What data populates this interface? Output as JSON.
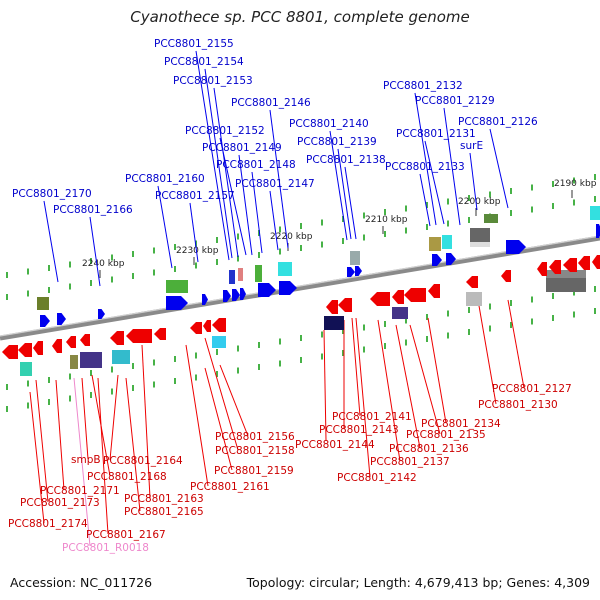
{
  "title": "Cyanothece sp. PCC 8801, complete genome",
  "footer": {
    "accession": "Accession: NC_011726",
    "stats": "Topology: circular; Length: 4,679,413 bp; Genes: 4,309"
  },
  "colors": {
    "forward_gene": "#0000ee",
    "reverse_gene": "#ee0000",
    "forward_label": "#0000cc",
    "reverse_label": "#cc0000",
    "rna_label": "#ee88cc",
    "backbone": "#888888"
  },
  "kbp_ticks": [
    "2190 kbp",
    "2200 kbp",
    "2210 kbp",
    "2220 kbp",
    "2230 kbp",
    "2240 kbp"
  ],
  "forward_labels": [
    "PCC8801_2155",
    "PCC8801_2154",
    "PCC8801_2153",
    "PCC8801_2146",
    "PCC8801_2152",
    "PCC8801_2149",
    "PCC8801_2148",
    "PCC8801_2147",
    "PCC8801_2160",
    "PCC8801_2157",
    "PCC8801_2170",
    "PCC8801_2166",
    "PCC8801_2140",
    "PCC8801_2139",
    "PCC8801_2138",
    "PCC8801_2132",
    "PCC8801_2129",
    "PCC8801_2126",
    "PCC8801_2131",
    "surE",
    "PCC8801_2133"
  ],
  "reverse_labels": [
    "PCC8801_2127",
    "PCC8801_2130",
    "PCC8801_2134",
    "PCC8801_2135",
    "PCC8801_2136",
    "PCC8801_2137",
    "PCC8801_2142",
    "PCC8801_2141",
    "PCC8801_2143",
    "PCC8801_2144",
    "PCC8801_2156",
    "PCC8801_2158",
    "PCC8801_2159",
    "PCC8801_2161",
    "PCC8801_2163",
    "PCC8801_2164",
    "PCC8801_2165",
    "smpB",
    "PCC8801_2168",
    "PCC8801_2167",
    "PCC8801_2171",
    "PCC8801_2173",
    "PCC8801_2174"
  ],
  "rna_labels": [
    "PCC8801_R0018"
  ]
}
